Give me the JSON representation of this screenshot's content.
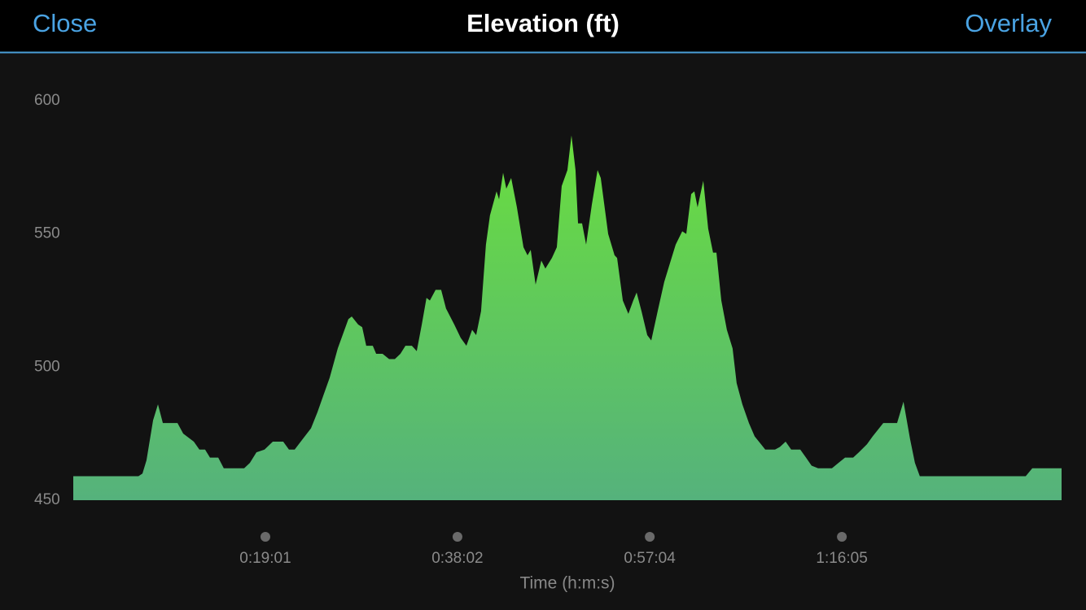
{
  "header": {
    "close": "Close",
    "overlay": "Overlay"
  },
  "chart_data": {
    "type": "area",
    "title": "Elevation (ft)",
    "x_label": "Time (h:m:s)",
    "colors": [
      "#6ade3e",
      "#55b27c"
    ],
    "x": [
      0,
      387,
      411,
      435,
      474,
      503,
      532,
      619,
      653,
      716,
      749,
      783,
      812,
      861,
      894,
      1015,
      1049,
      1088,
      1136,
      1185,
      1247,
      1281,
      1315,
      1363,
      1412,
      1450,
      1489,
      1523,
      1571,
      1634,
      1654,
      1692,
      1716,
      1740,
      1779,
      1799,
      1837,
      1876,
      1910,
      1943,
      1973,
      2011,
      2040,
      2070,
      2098,
      2118,
      2152,
      2185,
      2214,
      2263,
      2301,
      2335,
      2369,
      2393,
      2422,
      2451,
      2475,
      2514,
      2529,
      2553,
      2572,
      2601,
      2635,
      2674,
      2698,
      2717,
      2746,
      2780,
      2804,
      2843,
      2872,
      2901,
      2935,
      2959,
      2983,
      2998,
      3022,
      3046,
      3080,
      3114,
      3133,
      3177,
      3215,
      3230,
      3264,
      3297,
      3326,
      3346,
      3375,
      3409,
      3433,
      3471,
      3510,
      3544,
      3578,
      3617,
      3641,
      3670,
      3689,
      3708,
      3742,
      3771,
      3800,
      3820,
      3849,
      3882,
      3916,
      3940,
      3974,
      4013,
      4047,
      4085,
      4110,
      4168,
      4197,
      4231,
      4264,
      4318,
      4352,
      4385,
      4424,
      4506,
      4545,
      4584,
      4632,
      4666,
      4714,
      4748,
      4811,
      4893,
      4931,
      4970,
      4999,
      5028,
      5657,
      5696,
      5870
    ],
    "values": [
      459,
      459,
      460,
      465,
      480,
      486,
      479,
      479,
      475,
      472,
      469,
      469,
      466,
      466,
      462,
      462,
      464,
      468,
      469,
      472,
      472,
      469,
      469,
      473,
      477,
      483,
      490,
      496,
      507,
      518,
      519,
      516,
      515,
      508,
      508,
      505,
      505,
      503,
      503,
      505,
      508,
      508,
      506,
      516,
      526,
      525,
      529,
      529,
      522,
      516,
      511,
      508,
      514,
      512,
      521,
      546,
      557,
      566,
      563,
      573,
      567,
      571,
      560,
      545,
      542,
      544,
      531,
      540,
      537,
      541,
      545,
      568,
      574,
      587,
      574,
      554,
      554,
      546,
      561,
      574,
      571,
      550,
      542,
      541,
      525,
      520,
      525,
      528,
      521,
      512,
      510,
      521,
      532,
      539,
      546,
      551,
      550,
      565,
      566,
      560,
      570,
      552,
      543,
      543,
      525,
      514,
      507,
      494,
      486,
      479,
      474,
      471,
      469,
      469,
      470,
      472,
      469,
      469,
      466,
      463,
      462,
      462,
      464,
      466,
      466,
      468,
      471,
      474,
      479,
      479,
      487,
      473,
      464,
      459,
      459,
      462,
      462
    ],
    "xlim": [
      0,
      5870
    ],
    "ylim": [
      450,
      600
    ],
    "yticks": [
      450,
      500,
      550,
      600
    ],
    "xticks": [
      {
        "value": 1141,
        "label": "0:19:01"
      },
      {
        "value": 2282,
        "label": "0:38:02"
      },
      {
        "value": 3424,
        "label": "0:57:04"
      },
      {
        "value": 4565,
        "label": "1:16:05"
      }
    ]
  }
}
